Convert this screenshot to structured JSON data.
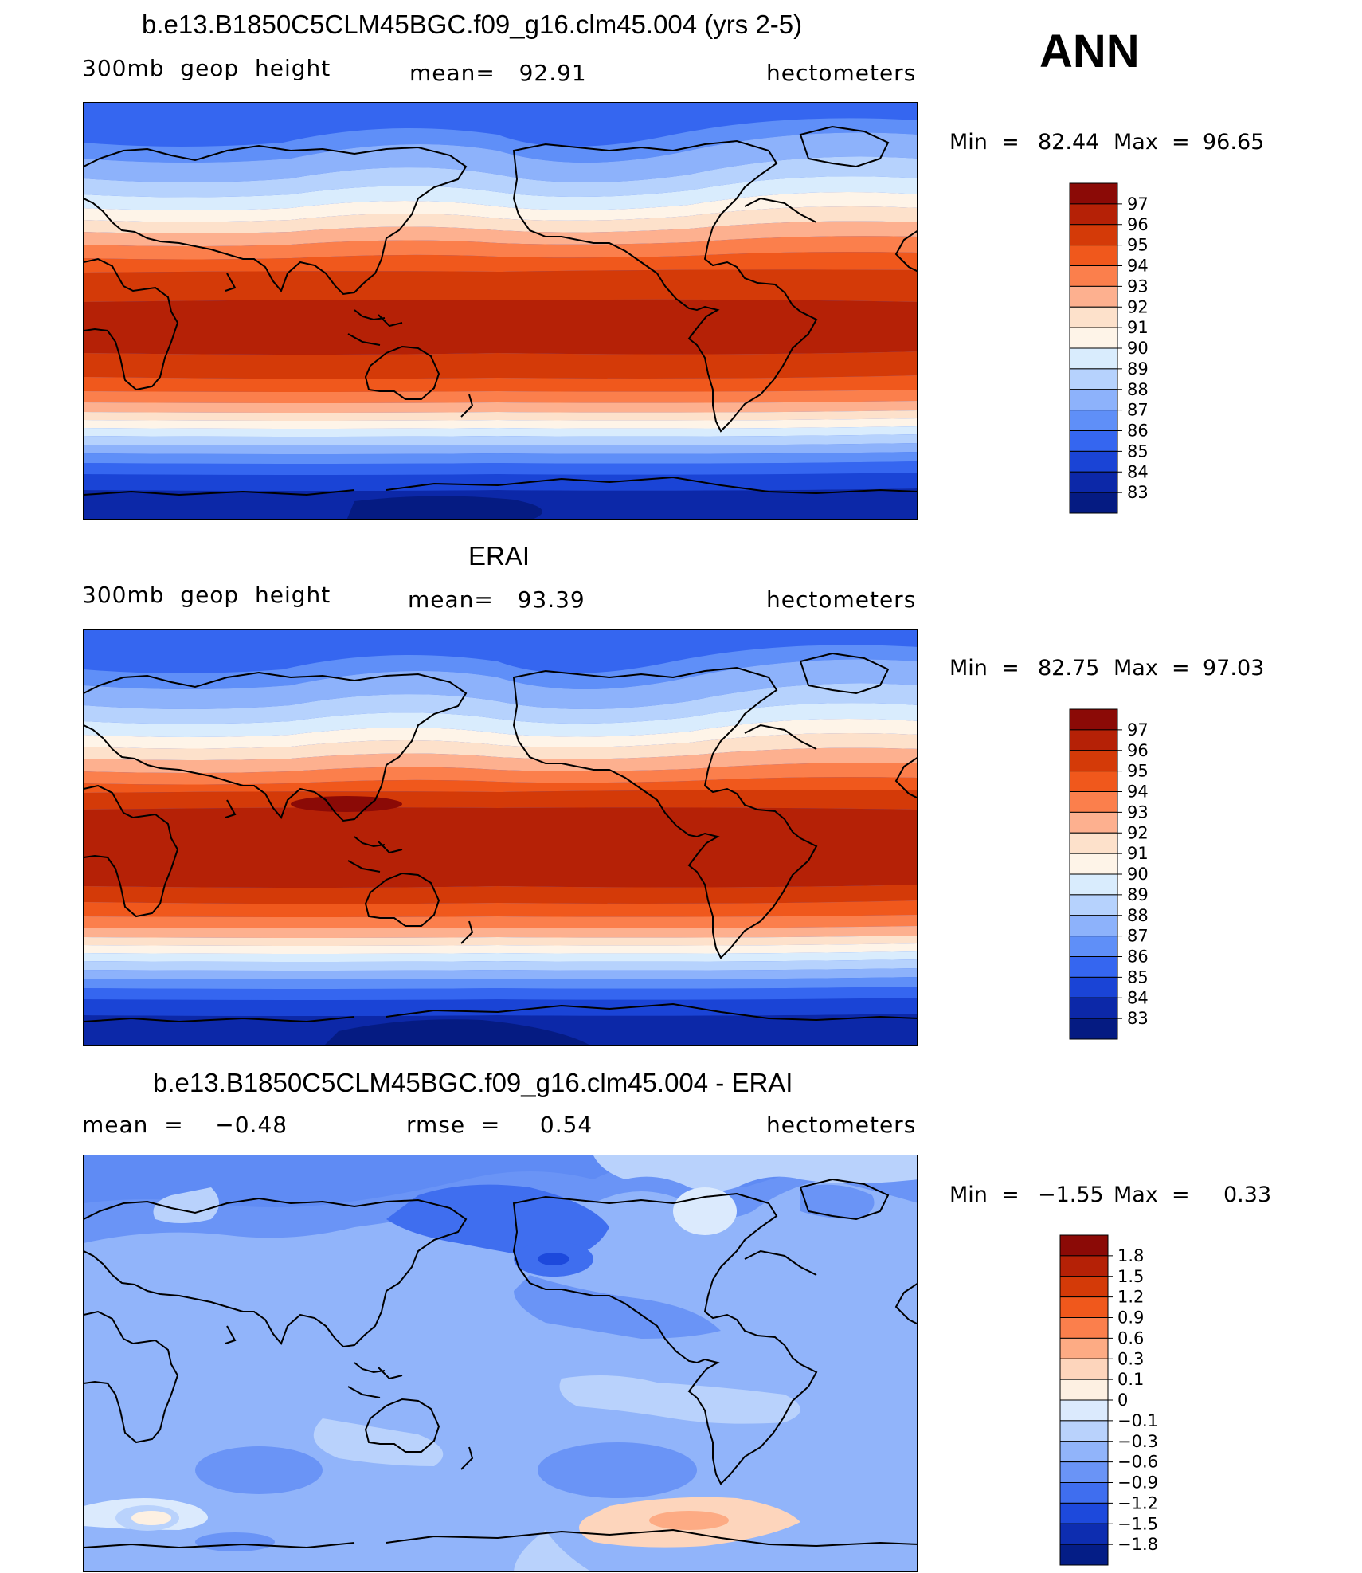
{
  "season": "ANN",
  "panels": [
    {
      "title": "b.e13.B1850C5CLM45BGC.f09_g16.clm45.004 (yrs 2-5)",
      "left_label": "300mb  geop  height",
      "center_label": "mean=   92.91",
      "right_label": "hectometers",
      "min_label": "Min  =",
      "min_value": "82.44",
      "max_label": "Max  =",
      "max_value": "96.65",
      "legend": [
        "97",
        "96",
        "95",
        "94",
        "93",
        "92",
        "91",
        "90",
        "89",
        "88",
        "87",
        "86",
        "85",
        "84",
        "83"
      ],
      "colors": [
        "#8b0a06",
        "#b52106",
        "#d43a08",
        "#f0581c",
        "#fb7f4c",
        "#fdb08f",
        "#fde1cb",
        "#fef4e8",
        "#d9ecfd",
        "#b6d2fd",
        "#8db2fb",
        "#5f8ff8",
        "#3566f0",
        "#1a44d6",
        "#0c28a8",
        "#051b82"
      ]
    },
    {
      "title": "ERAI",
      "left_label": "300mb  geop  height",
      "center_label": "mean=   93.39",
      "right_label": "hectometers",
      "min_label": "Min  =",
      "min_value": "82.75",
      "max_label": "Max  =",
      "max_value": "97.03",
      "legend": [
        "97",
        "96",
        "95",
        "94",
        "93",
        "92",
        "91",
        "90",
        "89",
        "88",
        "87",
        "86",
        "85",
        "84",
        "83"
      ],
      "colors": [
        "#8b0a06",
        "#b52106",
        "#d43a08",
        "#f0581c",
        "#fb7f4c",
        "#fdb08f",
        "#fde1cb",
        "#fef4e8",
        "#d9ecfd",
        "#b6d2fd",
        "#8db2fb",
        "#5f8ff8",
        "#3566f0",
        "#1a44d6",
        "#0c28a8",
        "#051b82"
      ]
    },
    {
      "title": "b.e13.B1850C5CLM45BGC.f09_g16.clm45.004 - ERAI",
      "left_label": "mean  =    −0.48",
      "center_label": "rmse  =     0.54",
      "right_label": "hectometers",
      "min_label": "Min  =",
      "min_value": "−1.55",
      "max_label": "Max  =",
      "max_value": "0.33",
      "legend": [
        "1.8",
        "1.5",
        "1.2",
        "0.9",
        "0.6",
        "0.3",
        "0.1",
        "0",
        "−0.1",
        "−0.3",
        "−0.6",
        "−0.9",
        "−1.2",
        "−1.5",
        "−1.8"
      ],
      "colors": [
        "#8b0a06",
        "#b52106",
        "#d43a08",
        "#f0581c",
        "#fb7f4c",
        "#fdab84",
        "#fdd5bc",
        "#fdf0e2",
        "#dbeafd",
        "#b9d2fc",
        "#91b4fa",
        "#6a94f6",
        "#3f6eef",
        "#1d49dc",
        "#0d2db0",
        "#041d86"
      ]
    }
  ]
}
